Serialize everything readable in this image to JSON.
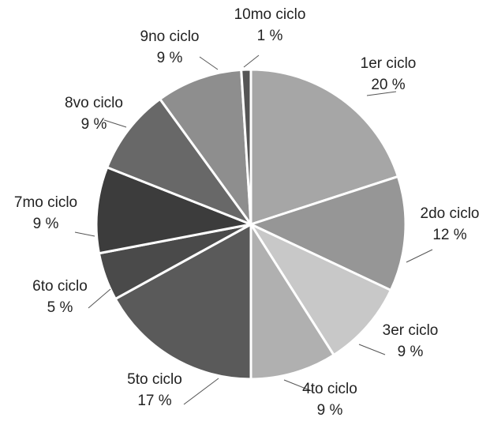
{
  "chart_data": {
    "type": "pie",
    "title": "",
    "start": "top",
    "direction": "clockwise",
    "legend": "none",
    "slices": [
      {
        "name": "1er ciclo",
        "value": 20,
        "label": "20 %",
        "color": "#a6a6a6"
      },
      {
        "name": "2do ciclo",
        "value": 12,
        "label": "12 %",
        "color": "#969696"
      },
      {
        "name": "3er ciclo",
        "value": 9,
        "label": "9 %",
        "color": "#c8c8c8"
      },
      {
        "name": "4to ciclo",
        "value": 9,
        "label": "9 %",
        "color": "#b0b0b0"
      },
      {
        "name": "5to ciclo",
        "value": 17,
        "label": "17 %",
        "color": "#5a5a5a"
      },
      {
        "name": "6to ciclo",
        "value": 5,
        "label": "5 %",
        "color": "#4a4a4a"
      },
      {
        "name": "7mo ciclo",
        "value": 9,
        "label": "9 %",
        "color": "#3c3c3c"
      },
      {
        "name": "8vo ciclo",
        "value": 9,
        "label": "9 %",
        "color": "#686868"
      },
      {
        "name": "9no ciclo",
        "value": 9,
        "label": "9 %",
        "color": "#8e8e8e"
      },
      {
        "name": "10mo ciclo",
        "value": 1,
        "label": "1 %",
        "color": "#555555"
      }
    ]
  }
}
